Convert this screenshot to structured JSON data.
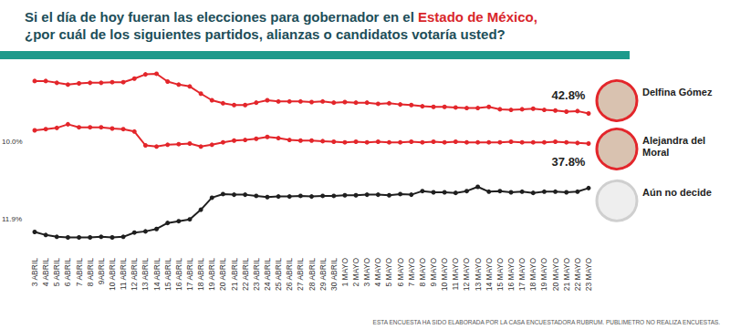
{
  "chart_data": {
    "type": "line",
    "title": "Si el día de hoy fueran las elecciones para gobernador en el Estado de México,\n¿por cuál de los siguientes partidos, alianzas o candidatos votaría usted?",
    "title_emphasis": "Estado de México,",
    "note": "ESTA ENCUESTA HA SIDO ELABORADA POR LA CASA ENCUESTADORA RUBRUM. PUBLIMETRO NO REALIZA ENCUESTAS.",
    "categories": [
      "3 ABRIL",
      "4 ABRIL",
      "5 ABRIL",
      "6 ABRIL",
      "7 ABRIL",
      "8 ABRIL",
      "9ABRIL",
      "10 ABRIL",
      "11 ABRIL",
      "12 ABRIL",
      "13 ABRIL",
      "14 ABRIL",
      "15 ABRIL",
      "16 ABRIL",
      "17 ABRIL",
      "18 ABRIL",
      "19 ABRIL",
      "20 ABRIL",
      "21 ABRIL",
      "22 ABRIL",
      "23 ABRIL",
      "24 ABRIL",
      "25 ABRIL",
      "26 ABRIL",
      "27 ABRIL",
      "28 ABRIL",
      "29 ABRIL",
      "30 ABRIL",
      "1 MAYO",
      "2 MAYO",
      "3 MAYO",
      "4 MAYO",
      "5 MAYO",
      "6 MAYO",
      "7 MAYO",
      "8 MAYO",
      "9 MAYO",
      "10 MAYO",
      "11 MAYO",
      "12 MAYO",
      "13 MAYO",
      "14 MAYO",
      "15 MAYO",
      "16 MAYO",
      "17 MAYO",
      "18 MAYO",
      "19 MAYO",
      "20 MAYO",
      "21 MAYO",
      "22 MAYO",
      "23 MAYO"
    ],
    "series": [
      {
        "name": "Delfina Gómez",
        "color": "#e3262b",
        "marker": "circle",
        "values": [
          48.2,
          48.2,
          47.9,
          47.6,
          47.8,
          47.9,
          47.9,
          48.0,
          48.0,
          48.6,
          49.3,
          49.4,
          48.1,
          47.6,
          47.3,
          46.1,
          45.0,
          44.5,
          44.2,
          44.2,
          44.6,
          45.0,
          44.8,
          44.8,
          44.8,
          44.7,
          44.8,
          44.6,
          44.7,
          44.6,
          44.6,
          44.4,
          44.5,
          44.3,
          44.2,
          44.0,
          43.9,
          43.9,
          43.8,
          43.7,
          43.7,
          43.9,
          43.5,
          43.4,
          43.5,
          43.6,
          43.4,
          43.3,
          43.1,
          43.2,
          42.8
        ],
        "value_labels": [
          null,
          null,
          null,
          null,
          null,
          null,
          null,
          null,
          null,
          null,
          null,
          null,
          null,
          null,
          null,
          null,
          null,
          null,
          null,
          null,
          null,
          null,
          null,
          null,
          null,
          null,
          null,
          null,
          null,
          null,
          null,
          null,
          null,
          null,
          null,
          null,
          null,
          null,
          null,
          null,
          null,
          null,
          null,
          null,
          null,
          null,
          null,
          null,
          null,
          null,
          "42.8%"
        ]
      },
      {
        "name": "Alejandra del Moral",
        "color": "#e3262b",
        "marker": "circle",
        "values": [
          40.0,
          40.2,
          40.4,
          41.0,
          40.5,
          40.5,
          40.5,
          40.3,
          40.2,
          39.8,
          37.5,
          37.3,
          37.6,
          37.7,
          37.8,
          37.3,
          37.6,
          38.0,
          38.3,
          38.4,
          38.6,
          38.9,
          38.7,
          38.4,
          38.3,
          38.3,
          38.2,
          38.1,
          38.0,
          38.1,
          38.0,
          38.1,
          38.0,
          38.0,
          38.1,
          38.0,
          38.1,
          38.0,
          38.1,
          38.0,
          38.0,
          38.0,
          38.0,
          38.1,
          38.0,
          38.0,
          38.0,
          38.1,
          38.0,
          37.9,
          37.8
        ],
        "value_labels": [
          null,
          null,
          null,
          null,
          null,
          null,
          null,
          null,
          null,
          null,
          null,
          null,
          null,
          null,
          null,
          null,
          null,
          null,
          null,
          null,
          null,
          null,
          null,
          null,
          null,
          null,
          null,
          null,
          null,
          null,
          null,
          null,
          null,
          null,
          null,
          null,
          null,
          null,
          null,
          null,
          null,
          null,
          null,
          null,
          null,
          null,
          null,
          null,
          null,
          null,
          "37.8%"
        ]
      },
      {
        "name": "Aún no decide",
        "color": "#1f1f1f",
        "marker": "circle",
        "values": [
          23.1,
          22.6,
          22.3,
          22.2,
          22.2,
          22.2,
          22.3,
          22.2,
          22.3,
          23.0,
          23.2,
          23.6,
          24.6,
          24.9,
          25.2,
          26.8,
          28.8,
          29.4,
          29.3,
          29.3,
          29.1,
          28.9,
          29.0,
          29.0,
          29.1,
          29.0,
          29.1,
          29.1,
          29.2,
          29.2,
          29.3,
          29.3,
          29.2,
          29.4,
          29.3,
          29.9,
          29.7,
          29.7,
          29.6,
          29.9,
          30.6,
          29.8,
          29.9,
          29.7,
          29.8,
          29.6,
          29.8,
          29.8,
          29.7,
          29.8,
          30.4
        ]
      }
    ],
    "annotations": [
      {
        "text": "10.0%",
        "series": "Alejandra del Moral"
      },
      {
        "text": "11.9%",
        "series": "Aún no decide"
      }
    ],
    "ylim": [
      20,
      50
    ],
    "tick_labels": "x",
    "grid": false,
    "data_labels": true
  }
}
